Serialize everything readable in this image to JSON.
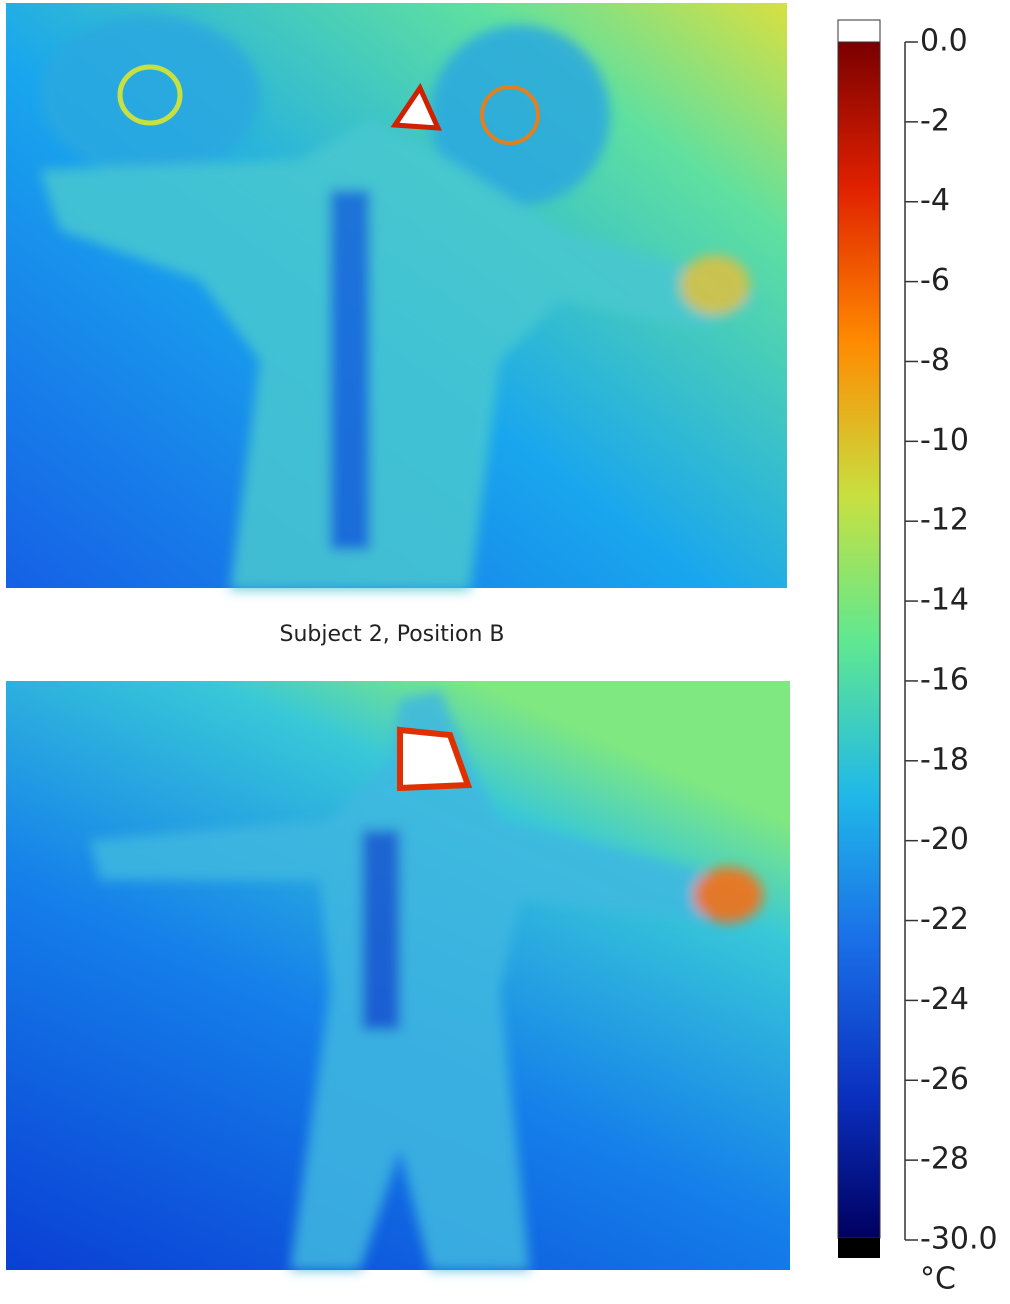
{
  "caption": "Subject 2, Position B",
  "colorbar": {
    "unit": "°C",
    "lim": [
      0,
      -30
    ],
    "ticks": [
      {
        "value": 0,
        "label": "0.0"
      },
      -2,
      -4,
      -6,
      -8,
      -10,
      -12,
      -14,
      -16,
      -18,
      -20,
      -22,
      -24,
      -26,
      -28,
      {
        "value": -30,
        "label": "-30.0"
      }
    ]
  }
}
